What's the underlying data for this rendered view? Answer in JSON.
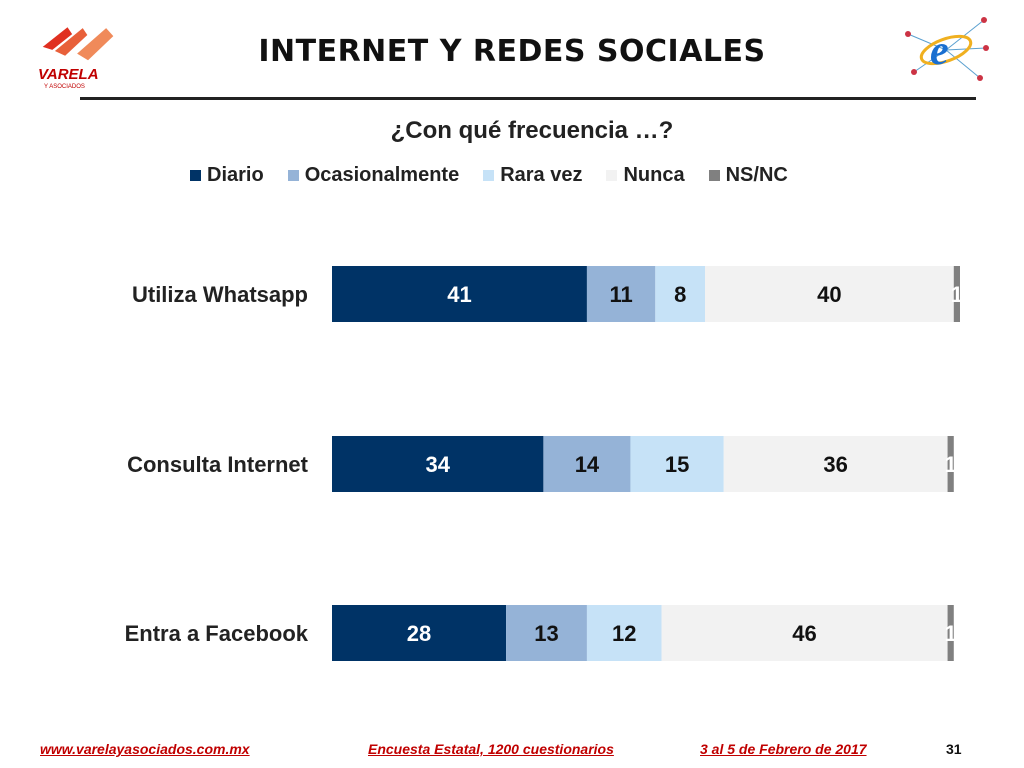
{
  "header": {
    "title": "INTERNET Y REDES SOCIALES",
    "logo_text": "VARELA",
    "logo_subtext": "Y ASOCIADOS"
  },
  "footer": {
    "url": "www.varelayasociados.com.mx",
    "survey": "Encuesta Estatal, 1200 cuestionarios",
    "date": "3 al 5 de Febrero de 2017",
    "page_number": "31"
  },
  "colors": {
    "accent_red": "#c00000",
    "diario": "#003366",
    "ocasionalmente": "#95b3d7",
    "rara_vez": "#c6e2f7",
    "nunca": "#f2f2f2",
    "nsnc": "#808080"
  },
  "chart_data": {
    "type": "bar",
    "orientation": "horizontal",
    "stacked": true,
    "title": "¿Con qué frecuencia …?",
    "categories": [
      "Utiliza Whatsapp",
      "Consulta Internet",
      "Entra a Facebook"
    ],
    "series": [
      {
        "name": "Diario",
        "values": [
          41,
          34,
          28
        ],
        "labels": [
          "41",
          "34",
          "28"
        ],
        "color": "#003366",
        "label_color": "#ffffff"
      },
      {
        "name": "Ocasionalmente",
        "values": [
          11,
          14,
          13
        ],
        "labels": [
          "11",
          "14",
          "13"
        ],
        "color": "#95b3d7",
        "label_color": "#111111"
      },
      {
        "name": "Rara vez",
        "values": [
          8,
          15,
          12
        ],
        "labels": [
          "8",
          "15",
          "12"
        ],
        "color": "#c6e2f7",
        "label_color": "#111111"
      },
      {
        "name": "Nunca",
        "values": [
          40,
          36,
          46
        ],
        "labels": [
          "40",
          "36",
          "46"
        ],
        "color": "#f2f2f2",
        "label_color": "#111111"
      },
      {
        "name": "NS/NC",
        "values": [
          1,
          1,
          1
        ],
        "labels": [
          "1",
          "1",
          "1"
        ],
        "color": "#808080",
        "label_color": "#ffffff"
      }
    ],
    "xlim": [
      0,
      101
    ],
    "legend_position": "top",
    "grid": false
  }
}
